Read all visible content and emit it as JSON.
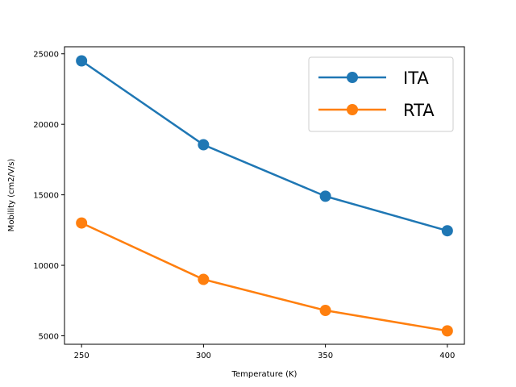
{
  "chart_data": {
    "type": "line",
    "title": "",
    "xlabel": "Temperature (K)",
    "ylabel": "Mobility (cm2/V/s)",
    "x": [
      250,
      300,
      350,
      400
    ],
    "xticks": [
      250,
      300,
      350,
      400
    ],
    "xlim": [
      243,
      407
    ],
    "yticks": [
      5000,
      10000,
      15000,
      20000,
      25000
    ],
    "ylim": [
      4400,
      25500
    ],
    "grid": false,
    "legend_position": "top-right",
    "series": [
      {
        "name": "ITA",
        "color": "#1f77b4",
        "values": [
          24500,
          18550,
          14900,
          12450
        ]
      },
      {
        "name": "RTA",
        "color": "#ff7f0e",
        "values": [
          13000,
          9000,
          6800,
          5350
        ]
      }
    ]
  }
}
